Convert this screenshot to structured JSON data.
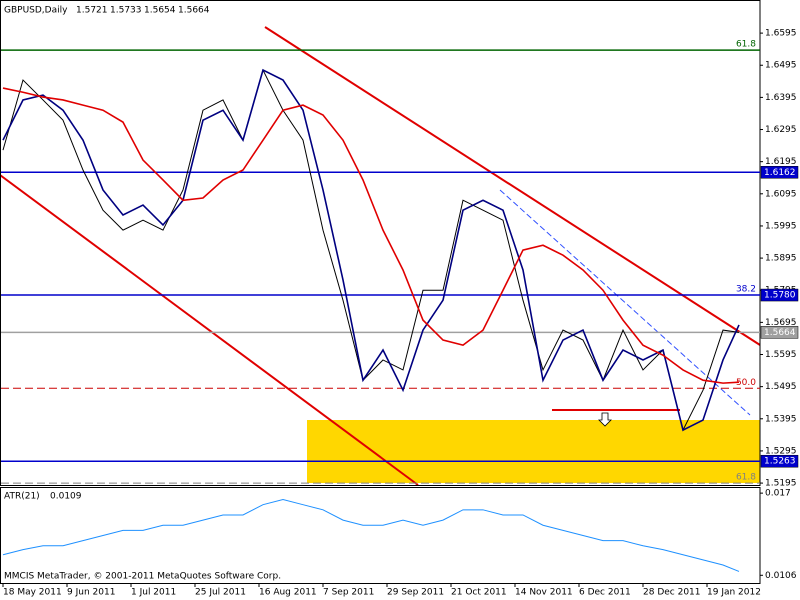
{
  "chart_data": [
    {
      "type": "line",
      "title": "GBPUSD,Daily",
      "last_bar": {
        "open": 1.5721,
        "high": 1.5733,
        "low": 1.5654,
        "close": 1.5664
      },
      "x": [
        "2011-05-18",
        "2011-05-25",
        "2011-06-01",
        "2011-06-08",
        "2011-06-15",
        "2011-06-22",
        "2011-06-29",
        "2011-07-06",
        "2011-07-13",
        "2011-07-20",
        "2011-07-27",
        "2011-08-03",
        "2011-08-10",
        "2011-08-17",
        "2011-08-24",
        "2011-08-31",
        "2011-09-07",
        "2011-09-14",
        "2011-09-21",
        "2011-09-28",
        "2011-10-05",
        "2011-10-12",
        "2011-10-19",
        "2011-10-26",
        "2011-11-02",
        "2011-11-09",
        "2011-11-16",
        "2011-11-23",
        "2011-11-30",
        "2011-12-07",
        "2011-12-14",
        "2011-12-21",
        "2011-12-28",
        "2012-01-04",
        "2012-01-11",
        "2012-01-18",
        "2012-01-25",
        "2012-01-31"
      ],
      "series": [
        {
          "color": "#000000",
          "values": [
            1.6231,
            1.6449,
            1.6387,
            1.6324,
            1.6169,
            1.6044,
            1.5982,
            1.6013,
            1.5982,
            1.6107,
            1.6355,
            1.6387,
            1.6262,
            1.648,
            1.6355,
            1.6262,
            1.5982,
            1.5764,
            1.5515,
            1.5578,
            1.5547,
            1.5795,
            1.5795,
            1.6075,
            1.6044,
            1.6013,
            1.5764,
            1.5547,
            1.5671,
            1.564,
            1.5515,
            1.5671,
            1.5547,
            1.5609,
            1.536,
            1.5484,
            1.5671,
            1.5664
          ]
        },
        {
          "color": "#000080",
          "values": [
            1.6262,
            1.6387,
            1.6402,
            1.6355,
            1.6262,
            1.6107,
            1.6029,
            1.606,
            1.5998,
            1.6075,
            1.6324,
            1.6355,
            1.6262,
            1.648,
            1.6449,
            1.6355,
            1.6107,
            1.5827,
            1.5515,
            1.5609,
            1.5484,
            1.5671,
            1.5764,
            1.6044,
            1.6075,
            1.6044,
            1.5858,
            1.5515,
            1.564,
            1.5671,
            1.5515,
            1.5609,
            1.5578,
            1.5609,
            1.536,
            1.5391,
            1.5578,
            1.5687
          ]
        },
        {
          "color": "#e00000",
          "values": [
            1.6424,
            1.6411,
            1.6396,
            1.6387,
            1.6371,
            1.6355,
            1.6318,
            1.62,
            1.6138,
            1.6075,
            1.6082,
            1.6138,
            1.6169,
            1.6262,
            1.6355,
            1.6371,
            1.634,
            1.6262,
            1.6138,
            1.5982,
            1.5858,
            1.5702,
            1.564,
            1.5624,
            1.5671,
            1.5795,
            1.592,
            1.5935,
            1.5904,
            1.5858,
            1.5795,
            1.5702,
            1.5624,
            1.5593,
            1.5547,
            1.5515,
            1.5506,
            1.5509
          ]
        }
      ],
      "ylim": [
        1.5189,
        1.6698
      ],
      "yticks": [
        1.6595,
        1.6495,
        1.6395,
        1.6295,
        1.6195,
        1.6095,
        1.5995,
        1.5895,
        1.5795,
        1.5695,
        1.5595,
        1.5495,
        1.5395,
        1.5295,
        1.5195
      ],
      "xticks": [
        {
          "value": "2011-05-18",
          "label": "18 May 2011"
        },
        {
          "value": "2011-06-09",
          "label": "9 Jun 2011"
        },
        {
          "value": "2011-07-01",
          "label": "1 Jul 2011"
        },
        {
          "value": "2011-07-25",
          "label": "25 Jul 2011"
        },
        {
          "value": "2011-08-16",
          "label": "16 Aug 2011"
        },
        {
          "value": "2011-09-07",
          "label": "7 Sep 2011"
        },
        {
          "value": "2011-09-29",
          "label": "29 Sep 2011"
        },
        {
          "value": "2011-10-21",
          "label": "21 Oct 2011"
        },
        {
          "value": "2011-11-14",
          "label": "14 Nov 2011"
        },
        {
          "value": "2011-12-06",
          "label": "6 Dec 2011"
        },
        {
          "value": "2011-12-28",
          "label": "28 Dec 2011"
        },
        {
          "value": "2012-01-19",
          "label": "19 Jan 2012"
        }
      ],
      "levels": [
        {
          "value": 1.6542,
          "color": "#006400",
          "label": "61.8"
        },
        {
          "value": 1.6162,
          "color": "#0000cc",
          "boxed": true
        },
        {
          "value": 1.578,
          "value_label": "1.5780",
          "color": "#0000cc",
          "boxed": true,
          "label": "38.2"
        },
        {
          "value": 1.5664,
          "color": "#a0a0a0",
          "boxed": true
        },
        {
          "value": 1.549,
          "color": "#cc0000",
          "dashed": true,
          "label": "50.0"
        },
        {
          "value": 1.5263,
          "color": "#0000cc",
          "boxed": true
        },
        {
          "value": 1.5195,
          "color": "#808080",
          "dashed": true,
          "label": "61.8"
        }
      ]
    },
    {
      "type": "line",
      "title": "ATR(21)",
      "current_value": 0.0109,
      "annotation": "MMCIS MetaTrader, © 2001-2011 MetaQuotes Software Corp.",
      "x": [
        "2011-05-18",
        "2011-05-25",
        "2011-06-01",
        "2011-06-08",
        "2011-06-15",
        "2011-06-22",
        "2011-06-29",
        "2011-07-06",
        "2011-07-13",
        "2011-07-20",
        "2011-07-27",
        "2011-08-03",
        "2011-08-10",
        "2011-08-17",
        "2011-08-24",
        "2011-08-31",
        "2011-09-07",
        "2011-09-14",
        "2011-09-21",
        "2011-09-28",
        "2011-10-05",
        "2011-10-12",
        "2011-10-19",
        "2011-10-26",
        "2011-11-02",
        "2011-11-09",
        "2011-11-16",
        "2011-11-23",
        "2011-11-30",
        "2011-12-07",
        "2011-12-14",
        "2011-12-21",
        "2011-12-28",
        "2012-01-04",
        "2012-01-11",
        "2012-01-18",
        "2012-01-25",
        "2012-01-31"
      ],
      "series": [
        {
          "color": "#1e90ff",
          "values": [
            0.0122,
            0.0126,
            0.0129,
            0.0129,
            0.0133,
            0.0137,
            0.0141,
            0.0141,
            0.0145,
            0.0145,
            0.0149,
            0.0153,
            0.0153,
            0.0161,
            0.0165,
            0.0161,
            0.0157,
            0.0149,
            0.0145,
            0.0145,
            0.0149,
            0.0145,
            0.0149,
            0.0157,
            0.0157,
            0.0153,
            0.0153,
            0.0145,
            0.0141,
            0.0137,
            0.0133,
            0.0133,
            0.0129,
            0.0126,
            0.0122,
            0.0118,
            0.0114,
            0.0109
          ]
        }
      ],
      "ylim": [
        0.01,
        0.0174
      ],
      "yticks": [
        0.017,
        0.0106
      ]
    }
  ]
}
